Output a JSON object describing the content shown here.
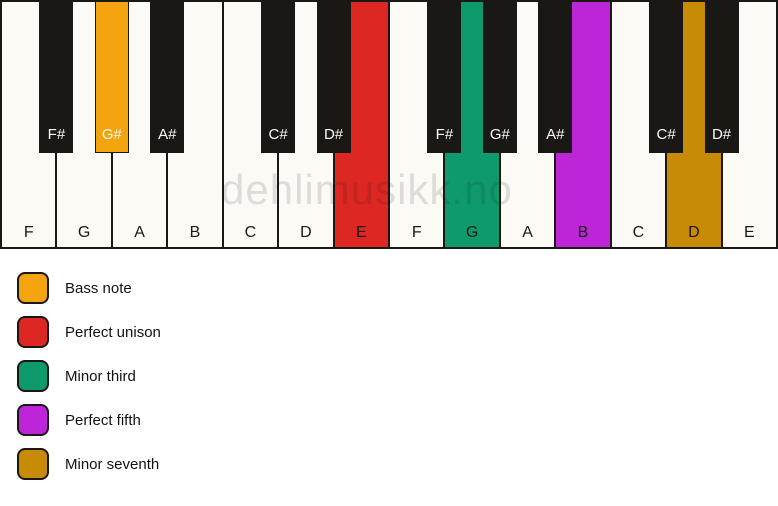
{
  "colors": {
    "white_key": "#fbfaf5",
    "black_key": "#1a1815",
    "key_border": "#1a1815",
    "bass_note": "#f2a30d",
    "perfect_unison": "#dc2722",
    "minor_third": "#0e9a6d",
    "perfect_fifth": "#bc26d8",
    "minor_seventh": "#c78b06"
  },
  "keyboard": {
    "watermark": "dehlimusikk.no",
    "white_keys": [
      {
        "label": "F",
        "highlight": null
      },
      {
        "label": "G",
        "highlight": null
      },
      {
        "label": "A",
        "highlight": null
      },
      {
        "label": "B",
        "highlight": null
      },
      {
        "label": "C",
        "highlight": null
      },
      {
        "label": "D",
        "highlight": null
      },
      {
        "label": "E",
        "highlight": "perfect_unison"
      },
      {
        "label": "F",
        "highlight": null
      },
      {
        "label": "G",
        "highlight": "minor_third"
      },
      {
        "label": "A",
        "highlight": null
      },
      {
        "label": "B",
        "highlight": "perfect_fifth"
      },
      {
        "label": "C",
        "highlight": null
      },
      {
        "label": "D",
        "highlight": "minor_seventh"
      },
      {
        "label": "E",
        "highlight": null
      }
    ],
    "black_keys": [
      {
        "label": "F#",
        "boundary": 1,
        "highlight": null
      },
      {
        "label": "G#",
        "boundary": 2,
        "highlight": "bass_note"
      },
      {
        "label": "A#",
        "boundary": 3,
        "highlight": null
      },
      {
        "label": "C#",
        "boundary": 5,
        "highlight": null
      },
      {
        "label": "D#",
        "boundary": 6,
        "highlight": null
      },
      {
        "label": "F#",
        "boundary": 8,
        "highlight": null
      },
      {
        "label": "G#",
        "boundary": 9,
        "highlight": null
      },
      {
        "label": "A#",
        "boundary": 10,
        "highlight": null
      },
      {
        "label": "C#",
        "boundary": 12,
        "highlight": null
      },
      {
        "label": "D#",
        "boundary": 13,
        "highlight": null
      }
    ]
  },
  "legend": {
    "items": [
      {
        "label": "Bass note",
        "color_key": "bass_note"
      },
      {
        "label": "Perfect unison",
        "color_key": "perfect_unison"
      },
      {
        "label": "Minor third",
        "color_key": "minor_third"
      },
      {
        "label": "Perfect fifth",
        "color_key": "perfect_fifth"
      },
      {
        "label": "Minor seventh",
        "color_key": "minor_seventh"
      }
    ]
  }
}
